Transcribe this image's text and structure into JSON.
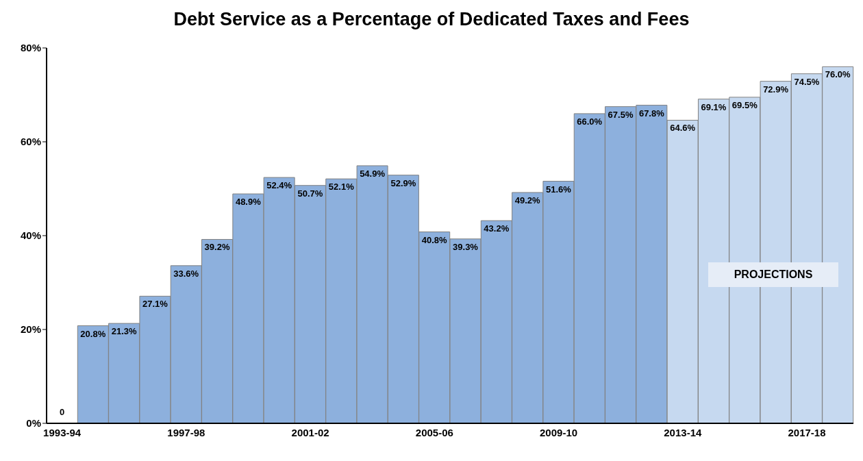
{
  "chart_data": {
    "type": "bar",
    "title": "Debt Service as a Percentage of Dedicated Taxes and Fees",
    "categories": [
      "1993-94",
      null,
      null,
      null,
      "1997-98",
      null,
      null,
      null,
      "2001-02",
      null,
      null,
      null,
      "2005-06",
      null,
      null,
      null,
      "2009-10",
      null,
      null,
      null,
      "2013-14",
      null,
      null,
      null,
      "2017-18",
      null
    ],
    "values": [
      0,
      20.8,
      21.3,
      27.1,
      33.6,
      39.2,
      48.9,
      52.4,
      50.7,
      52.1,
      54.9,
      52.9,
      40.8,
      39.3,
      43.2,
      49.2,
      51.6,
      66.0,
      67.5,
      67.8,
      64.6,
      69.1,
      69.5,
      72.9,
      74.5,
      76.0
    ],
    "value_labels": [
      "0",
      "20.8%",
      "21.3%",
      "27.1%",
      "33.6%",
      "39.2%",
      "48.9%",
      "52.4%",
      "50.7%",
      "52.1%",
      "54.9%",
      "52.9%",
      "40.8%",
      "39.3%",
      "43.2%",
      "49.2%",
      "51.6%",
      "66.0%",
      "67.5%",
      "67.8%",
      "64.6%",
      "69.1%",
      "69.5%",
      "72.9%",
      "74.5%",
      "76.0%"
    ],
    "colors": [
      "#8db0dd",
      "#8db0dd",
      "#8db0dd",
      "#8db0dd",
      "#8db0dd",
      "#8db0dd",
      "#8db0dd",
      "#8db0dd",
      "#8db0dd",
      "#8db0dd",
      "#8db0dd",
      "#8db0dd",
      "#8db0dd",
      "#8db0dd",
      "#8db0dd",
      "#8db0dd",
      "#8db0dd",
      "#8db0dd",
      "#8db0dd",
      "#8db0dd",
      "#c6d9f0",
      "#c6d9f0",
      "#c6d9f0",
      "#c6d9f0",
      "#c6d9f0",
      "#c6d9f0"
    ],
    "ylim": [
      0,
      80
    ],
    "yticks": [
      {
        "value": 0,
        "label": "0%"
      },
      {
        "value": 20,
        "label": "20%"
      },
      {
        "value": 40,
        "label": "40%"
      },
      {
        "value": 60,
        "label": "60%"
      },
      {
        "value": 80,
        "label": "80%"
      }
    ],
    "annotations": [
      "PROJECTIONS"
    ],
    "grid": false,
    "legend": false
  }
}
